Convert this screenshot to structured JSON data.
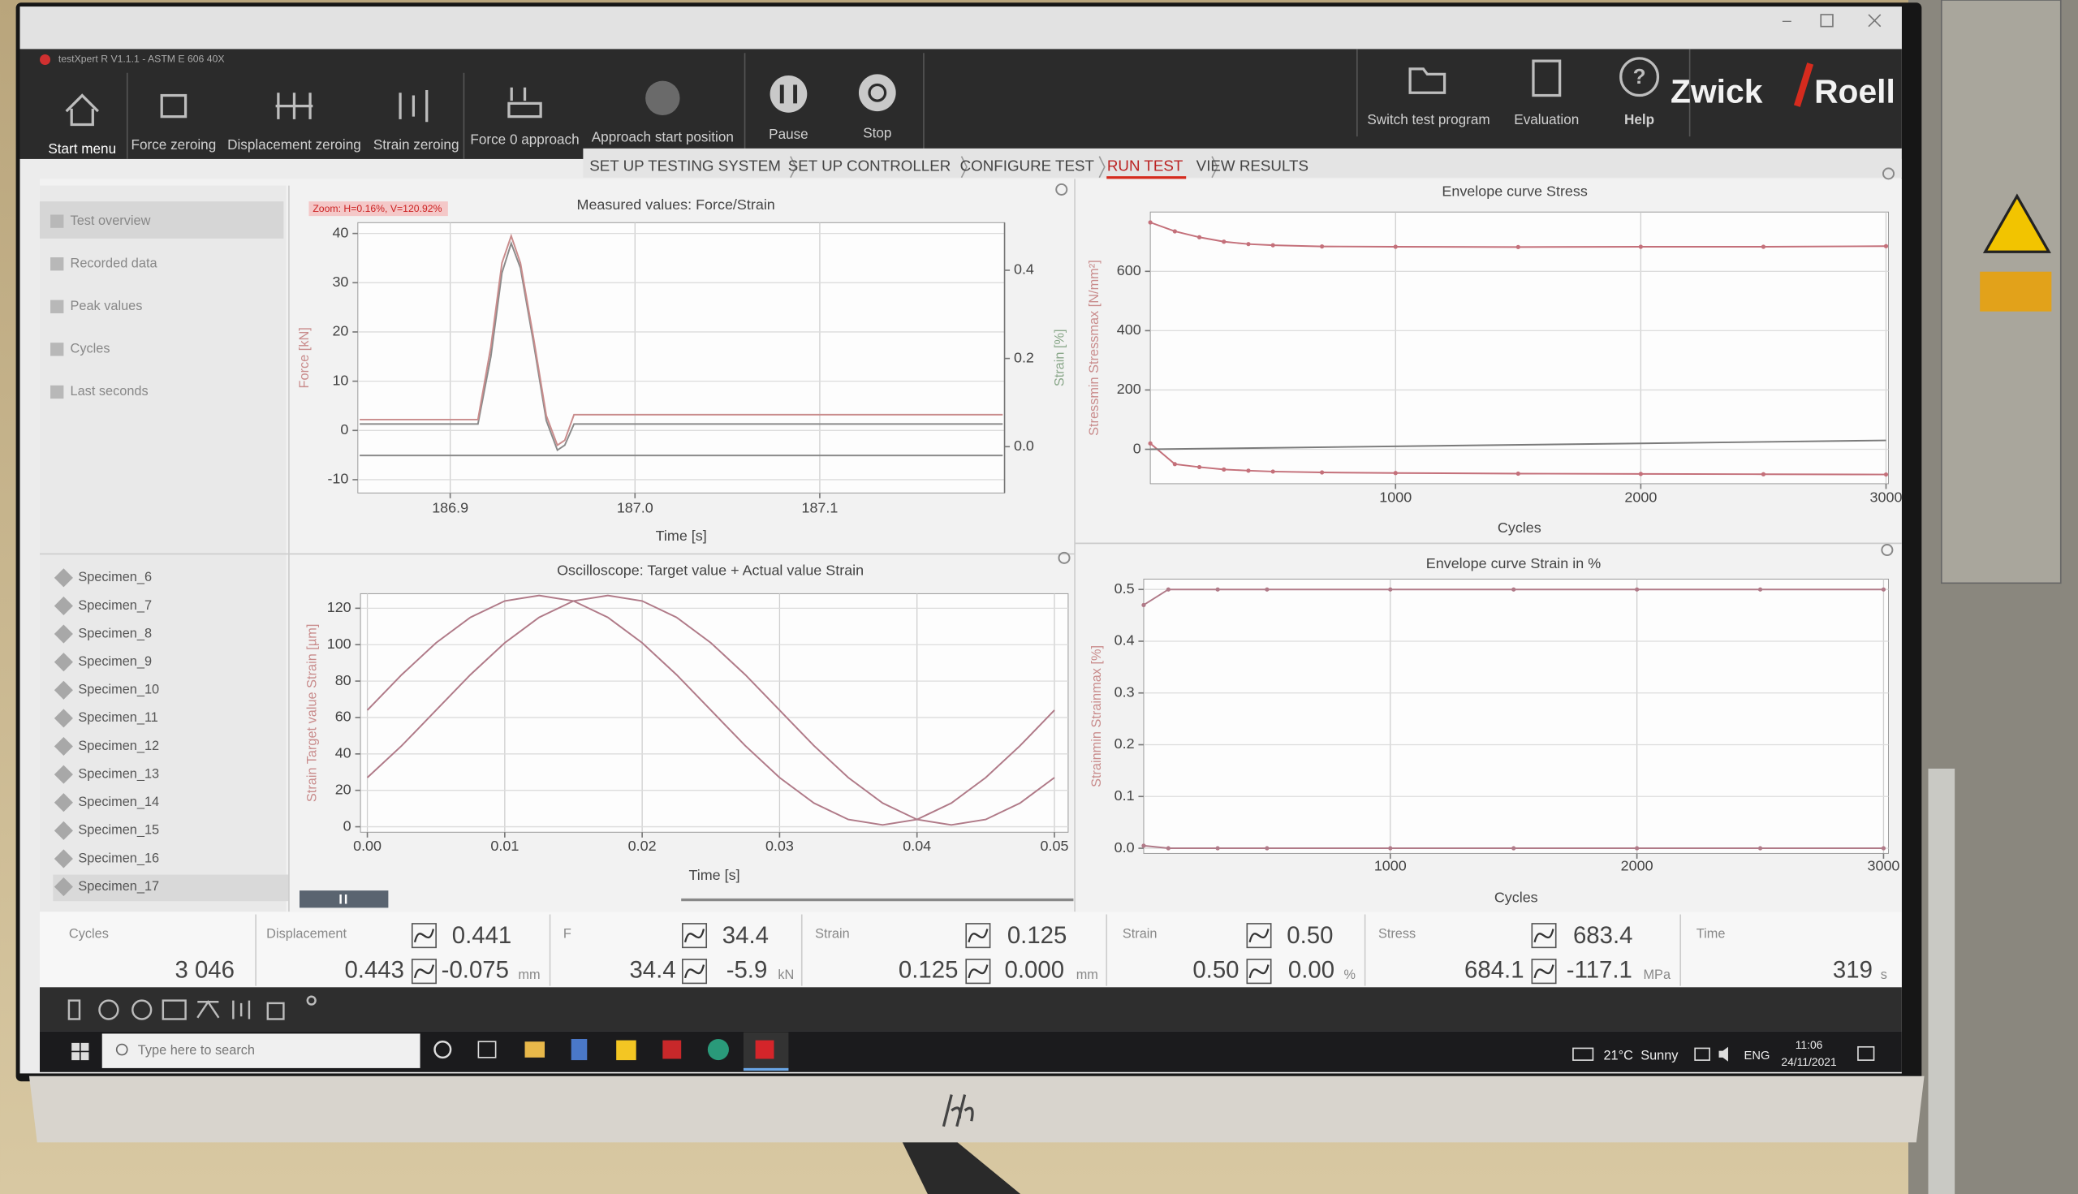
{
  "window": {
    "title": "testXpert R V1.1.1 - ASTM E 606 40X"
  },
  "toolbar": {
    "buttons": [
      "Start menu",
      "Force zeroing",
      "Displacement zeroing",
      "Strain zeroing",
      "Force 0 approach",
      "Approach start position",
      "Pause",
      "Stop"
    ],
    "right_buttons": [
      "Switch test program",
      "Evaluation",
      "Help"
    ],
    "logo": [
      "Zwick",
      "Roell"
    ]
  },
  "breadcrumb": [
    "SET UP TESTING SYSTEM",
    "SET UP CONTROLLER",
    "CONFIGURE TEST",
    "RUN TEST",
    "VIEW RESULTS"
  ],
  "sidebar": {
    "views": [
      "Test overview",
      "Recorded data",
      "Peak values",
      "Cycles",
      "Last seconds"
    ],
    "specimens": [
      "Specimen_6",
      "Specimen_7",
      "Specimen_8",
      "Specimen_9",
      "Specimen_10",
      "Specimen_11",
      "Specimen_12",
      "Specimen_13",
      "Specimen_14",
      "Specimen_15",
      "Specimen_16",
      "Specimen_17"
    ]
  },
  "charts": [
    {
      "type": "line",
      "title": "Measured values: Force/Strain",
      "zoom_label": "Zoom: H=0.16%, V=120.92%",
      "x_label": "Time [s]",
      "y_label": "Force [kN]",
      "y2_label": "Strain [%]",
      "xlim": [
        186.85,
        187.2
      ],
      "xticks": [
        186.9,
        {
          "value": 187,
          "label": "187.0"
        },
        187.1
      ],
      "ylim": [
        -12.7,
        42.2
      ],
      "yticks": [
        -10,
        0,
        10,
        20,
        30,
        40
      ],
      "y2lim": [
        -0.105,
        0.508
      ],
      "y2ticks": [
        {
          "value": 0,
          "label": "0.0"
        },
        0.2,
        0.4
      ],
      "grid": true,
      "markers": false,
      "series": [
        {
          "color": "#8a8a8a",
          "x": [
            186.851,
            186.915,
            186.922,
            186.928,
            186.933,
            186.938,
            186.945,
            186.952,
            186.958,
            186.962,
            186.967,
            187.199
          ],
          "values": [
            1.3,
            1.3,
            15,
            32,
            38,
            33,
            18,
            2,
            -4,
            -3,
            1.3,
            1.3
          ]
        },
        {
          "color": "#c98c8c",
          "x": [
            186.851,
            186.915,
            186.922,
            186.928,
            186.933,
            186.938,
            186.945,
            186.952,
            186.958,
            186.962,
            186.967,
            187.199
          ],
          "values": [
            2.2,
            2.2,
            17,
            34,
            39.5,
            34,
            19,
            3,
            -3,
            -2,
            3.2,
            3.2
          ]
        },
        {
          "color": "#8a8a8a",
          "axis": "y2",
          "x": [
            186.851,
            187.199
          ],
          "values": [
            -0.02,
            -0.02
          ]
        }
      ]
    },
    {
      "type": "line",
      "title": "Oscilloscope: Target value + Actual value Strain",
      "x_label": "Time [s]",
      "y_label": "Strain Target value Strain [µm]",
      "xlim": [
        -0.0005,
        0.051
      ],
      "xticks": [
        {
          "value": 0,
          "label": "0.00"
        },
        0.01,
        0.02,
        0.03,
        0.04,
        0.05
      ],
      "ylim": [
        -3,
        128
      ],
      "yticks": [
        0,
        20,
        40,
        60,
        80,
        100,
        120
      ],
      "grid": true,
      "markers": false,
      "x": [
        0,
        0.0025,
        0.005,
        0.0075,
        0.01,
        0.0125,
        0.015,
        0.0175,
        0.02,
        0.0225,
        0.025,
        0.0275,
        0.03,
        0.0325,
        0.035,
        0.0375,
        0.04,
        0.0425,
        0.045,
        0.0475,
        0.05
      ],
      "series": [
        {
          "color": "#b07a88",
          "values": [
            64,
            83.5,
            101,
            115,
            124,
            127,
            124,
            115,
            101,
            83.5,
            64,
            44.5,
            27,
            13,
            4,
            1,
            4,
            13,
            27,
            44.5,
            64
          ]
        },
        {
          "color": "#b07a88",
          "values": [
            27,
            44.5,
            64,
            83.5,
            101,
            115,
            124,
            127,
            124,
            115,
            101,
            83.5,
            64,
            44.5,
            27,
            13,
            4,
            1,
            4,
            13,
            27
          ]
        }
      ]
    },
    {
      "type": "line",
      "title": "Envelope curve Stress",
      "x_label": "Cycles",
      "y_label": "Stressmin Stressmax [N/mm²]",
      "xlim": [
        0,
        3010
      ],
      "xticks": [
        1000,
        2000,
        3000
      ],
      "ylim": [
        -116,
        800
      ],
      "yticks": [
        0,
        200,
        400,
        600
      ],
      "grid": true,
      "markers": true,
      "series": [
        {
          "color": "#c4707a",
          "x": [
            0,
            100,
            200,
            300,
            400,
            500,
            700,
            1000,
            1500,
            2000,
            2500,
            3000
          ],
          "values": [
            765,
            735,
            715,
            700,
            692,
            688,
            684,
            683,
            682,
            683,
            683,
            685
          ]
        },
        {
          "color": "#c4707a",
          "x": [
            0,
            100,
            200,
            300,
            400,
            500,
            700,
            1000,
            1500,
            2000,
            2500,
            3000
          ],
          "values": [
            20,
            -50,
            -60,
            -68,
            -72,
            -75,
            -78,
            -80,
            -82,
            -83,
            -84,
            -85
          ]
        },
        {
          "color": "#7a7a7a",
          "x": [
            0,
            3000
          ],
          "values": [
            0,
            30
          ]
        }
      ]
    },
    {
      "type": "line",
      "title": "Envelope curve Strain in %",
      "x_label": "Cycles",
      "y_label": "Strainmin Strainmax [%]",
      "xlim": [
        0,
        3020
      ],
      "xticks": [
        1000,
        2000,
        3000
      ],
      "ylim": [
        -0.01,
        0.52
      ],
      "yticks": [
        {
          "value": 0,
          "label": "0.0"
        },
        0.1,
        0.2,
        0.3,
        0.4,
        0.5
      ],
      "grid": true,
      "markers": true,
      "series": [
        {
          "color": "#b07a88",
          "x": [
            0,
            100,
            300,
            500,
            1000,
            1500,
            2000,
            2500,
            3000
          ],
          "values": [
            0.47,
            0.5,
            0.5,
            0.5,
            0.5,
            0.5,
            0.5,
            0.5,
            0.5
          ]
        },
        {
          "color": "#b07a88",
          "x": [
            0,
            100,
            300,
            500,
            1000,
            1500,
            2000,
            2500,
            3000
          ],
          "values": [
            0.005,
            0,
            0,
            0,
            0,
            0,
            0,
            0,
            0
          ]
        }
      ]
    }
  ],
  "status": [
    {
      "label": "Cycles",
      "value": "3 046"
    },
    {
      "label": "Displacement",
      "current": "0.441",
      "max": "0.443",
      "min": "-0.075",
      "unit": "mm"
    },
    {
      "label": "F",
      "current": "34.4",
      "max": "34.4",
      "min": "-5.9",
      "unit": "kN"
    },
    {
      "label": "Strain",
      "current": "0.125",
      "max": "0.125",
      "min": "0.000",
      "unit": "mm"
    },
    {
      "label": "Strain",
      "current": "0.50",
      "max": "0.50",
      "min": "0.00",
      "unit": "%"
    },
    {
      "label": "Stress",
      "current": "683.4",
      "max": "684.1",
      "min": "-117.1",
      "unit": "MPa"
    },
    {
      "label": "Time",
      "value": "319",
      "unit": "s"
    }
  ],
  "taskbar": {
    "search": "Type here to search",
    "temperature": "21°C",
    "weather": "Sunny",
    "language": "ENG",
    "time": "11:06",
    "date": "24/11/2021"
  }
}
